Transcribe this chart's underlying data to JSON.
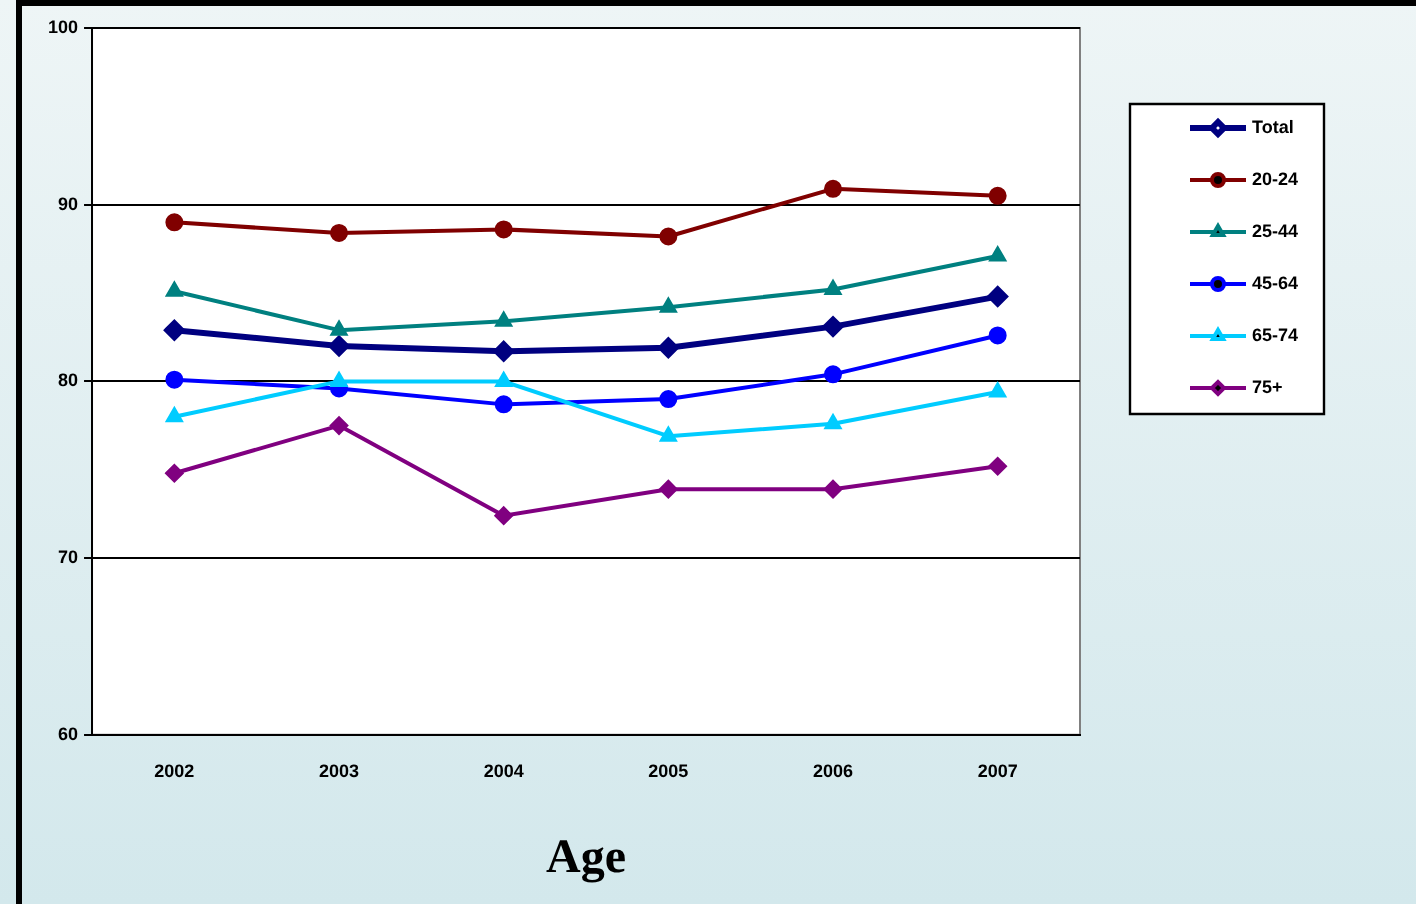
{
  "chart_data": {
    "type": "line",
    "xlabel": "Age",
    "categories": [
      "2002",
      "2003",
      "2004",
      "2005",
      "2006",
      "2007"
    ],
    "series": [
      {
        "name": "Total",
        "color": "#000080",
        "marker": "diamond",
        "values": [
          82.9,
          82.0,
          81.7,
          81.9,
          83.1,
          84.8
        ]
      },
      {
        "name": "20-24",
        "color": "#800000",
        "marker": "circle",
        "values": [
          89.0,
          88.4,
          88.6,
          88.2,
          90.9,
          90.5
        ]
      },
      {
        "name": "25-44",
        "color": "#008080",
        "marker": "triangle",
        "values": [
          85.1,
          82.9,
          83.4,
          84.2,
          85.2,
          87.1
        ]
      },
      {
        "name": "45-64",
        "color": "#0000ff",
        "marker": "circle",
        "values": [
          80.1,
          79.6,
          78.7,
          79.0,
          80.4,
          82.6
        ]
      },
      {
        "name": "65-74",
        "color": "#00ccff",
        "marker": "triangle",
        "values": [
          78.0,
          80.0,
          80.0,
          76.9,
          77.6,
          79.4
        ]
      },
      {
        "name": "75+",
        "color": "#800080",
        "marker": "diamond",
        "values": [
          74.8,
          77.5,
          72.4,
          73.9,
          73.9,
          75.2
        ]
      }
    ],
    "ylim": [
      60,
      100
    ],
    "yticks": [
      60,
      70,
      80,
      90,
      100
    ],
    "grid": "y",
    "legend": "right"
  }
}
